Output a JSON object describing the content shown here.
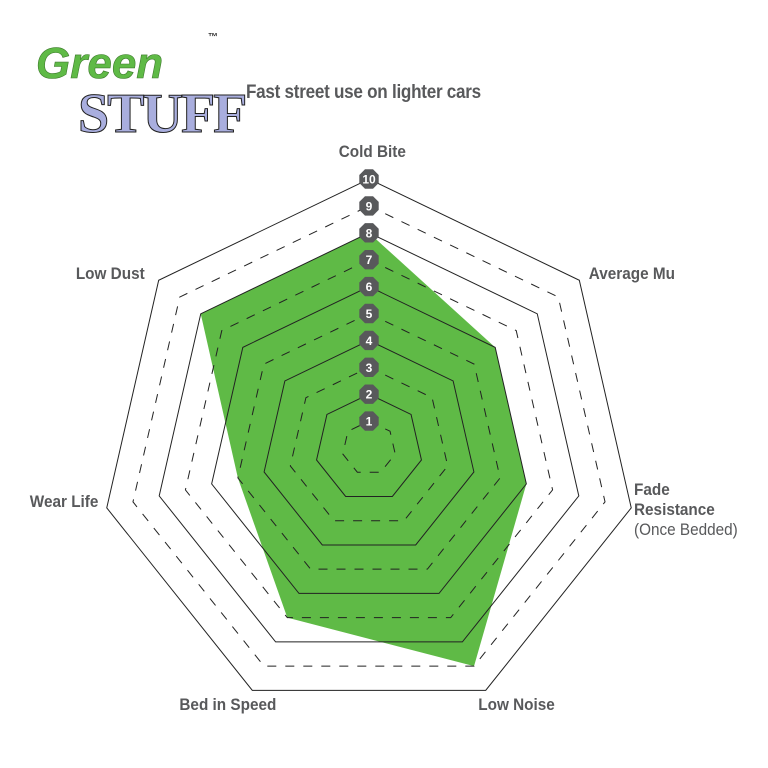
{
  "logo": {
    "line1": "Green",
    "line2": "STUFF",
    "tm": "™",
    "green": "#5fba46",
    "lavender": "#a9aede"
  },
  "subtitle": "Fast street use on lighter cars",
  "chart_data": {
    "type": "radar",
    "title": "Fast street use on lighter cars",
    "axes": [
      "Cold Bite",
      "Average Mu",
      "Fade Resistance (Once Bedded)",
      "Low Noise",
      "Bed in Speed",
      "Wear Life",
      "Low Dust"
    ],
    "axis_labels": {
      "cold_bite": "Cold Bite",
      "average_mu": "Average Mu",
      "fade_1": "Fade",
      "fade_2": "Resistance",
      "fade_3": "(Once Bedded)",
      "low_noise": "Low Noise",
      "bed_in_speed": "Bed in Speed",
      "wear_life": "Wear Life",
      "low_dust": "Low Dust"
    },
    "values": [
      8,
      6,
      6,
      9,
      7,
      5,
      8
    ],
    "range": [
      0,
      10
    ],
    "ticks": [
      "1",
      "2",
      "3",
      "4",
      "5",
      "6",
      "7",
      "8",
      "9",
      "10"
    ],
    "grid": "odd rings dashed, even rings solid",
    "fill_color": "#5fba46",
    "badge_color": "#58595b"
  }
}
